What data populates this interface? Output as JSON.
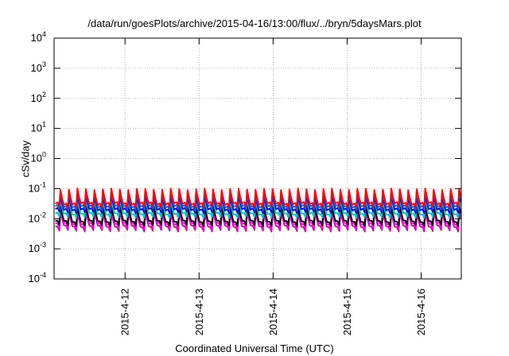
{
  "chart_data": {
    "type": "line",
    "title": "/data/run/goesPlots/archive/2015-04-16/13:00/flux/../bryn/5daysMars.plot",
    "xlabel": "Coordinated Universal Time (UTC)",
    "ylabel": "cSv/day",
    "yscale": "log",
    "ylim": [
      0.0001,
      10000
    ],
    "y_ticks": [
      {
        "value": 0.0001,
        "base": "10",
        "exp": "-4"
      },
      {
        "value": 0.001,
        "base": "10",
        "exp": "-3"
      },
      {
        "value": 0.01,
        "base": "10",
        "exp": "-2"
      },
      {
        "value": 0.1,
        "base": "10",
        "exp": "-1"
      },
      {
        "value": 1,
        "base": "10",
        "exp": "0"
      },
      {
        "value": 10,
        "base": "10",
        "exp": "1"
      },
      {
        "value": 100,
        "base": "10",
        "exp": "2"
      },
      {
        "value": 1000,
        "base": "10",
        "exp": "3"
      },
      {
        "value": 10000,
        "base": "10",
        "exp": "4"
      }
    ],
    "xlim": [
      "2015-04-11T01:00",
      "2015-04-16T13:00"
    ],
    "x_ticks": [
      {
        "value": "2015-04-12T00:00",
        "label": "2015-4-12"
      },
      {
        "value": "2015-04-13T00:00",
        "label": "2015-4-13"
      },
      {
        "value": "2015-04-14T00:00",
        "label": "2015-4-14"
      },
      {
        "value": "2015-04-15T00:00",
        "label": "2015-4-15"
      },
      {
        "value": "2015-04-16T00:00",
        "label": "2015-4-16"
      }
    ],
    "grid": true,
    "legend": "none",
    "cycle_hours": 2.75,
    "series_colors": [
      "#e0009a",
      "#ff00ff",
      "#000000",
      "#00c8c8",
      "#0000ff",
      "#3050d0",
      "#ff0000"
    ],
    "series": [
      {
        "color": "#e0009a",
        "peak": 0.018,
        "trough": 0.004
      },
      {
        "color": "#ff00ff",
        "peak": 0.022,
        "trough": 0.005
      },
      {
        "color": "#000000",
        "peak": 0.026,
        "trough": 0.006
      },
      {
        "color": "#00c8c8",
        "peak": 0.045,
        "trough": 0.011
      },
      {
        "color": "#0000ff",
        "peak": 0.062,
        "trough": 0.016
      },
      {
        "color": "#3050d0",
        "peak": 0.078,
        "trough": 0.02
      },
      {
        "color": "#ff0000",
        "peak": 0.095,
        "trough": 0.025
      }
    ]
  }
}
